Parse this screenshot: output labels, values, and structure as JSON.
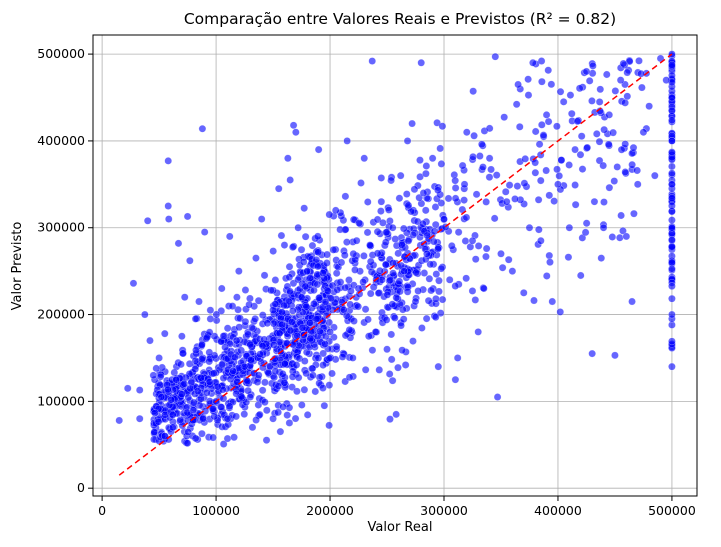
{
  "chart_data": {
    "type": "scatter",
    "title": "Comparação entre Valores Reais e Previstos (R² = 0.82)",
    "xlabel": "Valor Real",
    "ylabel": "Valor Previsto",
    "xlim": [
      -8000,
      522000
    ],
    "ylim": [
      -9000,
      522000
    ],
    "xticks": [
      0,
      100000,
      200000,
      300000,
      400000,
      500000
    ],
    "yticks": [
      0,
      100000,
      200000,
      300000,
      400000,
      500000
    ],
    "xtick_labels": [
      "0",
      "100000",
      "200000",
      "300000",
      "400000",
      "500000"
    ],
    "ytick_labels": [
      "0",
      "100000",
      "200000",
      "300000",
      "400000",
      "500000"
    ],
    "grid": true,
    "point_color": "#0000ff",
    "point_edge_color": "#ffffff",
    "point_opacity": 0.6,
    "reference_line": {
      "x": [
        15000,
        500000
      ],
      "y": [
        15000,
        500000
      ],
      "color": "#ff0000",
      "style": "dashed"
    },
    "series": [
      {
        "points": [
          [
            14999,
            78000
          ],
          [
            22500,
            115000
          ],
          [
            27500,
            236000
          ],
          [
            33000,
            113000
          ],
          [
            33000,
            80000
          ],
          [
            37500,
            200000
          ],
          [
            40000,
            308000
          ],
          [
            42000,
            170000
          ],
          [
            45000,
            130000
          ],
          [
            47500,
            138000
          ],
          [
            50000,
            150000
          ],
          [
            52000,
            105000
          ],
          [
            55000,
            178000
          ],
          [
            55000,
            60000
          ],
          [
            58000,
            325000
          ],
          [
            58000,
            377000
          ],
          [
            58500,
            310000
          ],
          [
            62000,
            70000
          ],
          [
            65000,
            125000
          ],
          [
            67000,
            282000
          ],
          [
            70000,
            175000
          ],
          [
            72500,
            220000
          ],
          [
            75000,
            313000
          ],
          [
            77000,
            262000
          ],
          [
            80000,
            90000
          ],
          [
            82000,
            195000
          ],
          [
            85000,
            215000
          ],
          [
            87500,
            165000
          ],
          [
            88000,
            414000
          ],
          [
            90000,
            295000
          ],
          [
            92000,
            110000
          ],
          [
            95000,
            205000
          ],
          [
            100000,
            100000
          ],
          [
            105000,
            230000
          ],
          [
            110000,
            80000
          ],
          [
            112000,
            290000
          ],
          [
            115000,
            135000
          ],
          [
            118000,
            170000
          ],
          [
            120000,
            250000
          ],
          [
            125000,
            140000
          ],
          [
            130000,
            105000
          ],
          [
            135000,
            265000
          ],
          [
            140000,
            310000
          ],
          [
            145000,
            190000
          ],
          [
            150000,
            80000
          ],
          [
            155000,
            345000
          ],
          [
            160000,
            280000
          ],
          [
            163000,
            380000
          ],
          [
            165000,
            355000
          ],
          [
            168000,
            418000
          ],
          [
            170000,
            410000
          ],
          [
            172000,
            300000
          ],
          [
            175000,
            220000
          ],
          [
            180000,
            250000
          ],
          [
            185000,
            130000
          ],
          [
            190000,
            390000
          ],
          [
            195000,
            95000
          ],
          [
            200000,
            180000
          ],
          [
            205000,
            320000
          ],
          [
            210000,
            260000
          ],
          [
            215000,
            400000
          ],
          [
            220000,
            150000
          ],
          [
            225000,
            230000
          ],
          [
            230000,
            380000
          ],
          [
            235000,
            280000
          ],
          [
            237000,
            492000
          ],
          [
            240000,
            180000
          ],
          [
            245000,
            330000
          ],
          [
            250000,
            160000
          ],
          [
            255000,
            300000
          ],
          [
            258000,
            85000
          ],
          [
            262000,
            360000
          ],
          [
            265000,
            250000
          ],
          [
            268000,
            400000
          ],
          [
            272000,
            420000
          ],
          [
            275000,
            215000
          ],
          [
            280000,
            490000
          ],
          [
            282000,
            340000
          ],
          [
            285000,
            270000
          ],
          [
            290000,
            380000
          ],
          [
            295000,
            140000
          ],
          [
            300000,
            310000
          ],
          [
            305000,
            240000
          ],
          [
            310000,
            125000
          ],
          [
            312000,
            150000
          ],
          [
            318000,
            350000
          ],
          [
            320000,
            410000
          ],
          [
            325000,
            285000
          ],
          [
            330000,
            180000
          ],
          [
            335000,
            230000
          ],
          [
            340000,
            380000
          ],
          [
            345000,
            497000
          ],
          [
            347000,
            105000
          ],
          [
            350000,
            270000
          ],
          [
            355000,
            330000
          ],
          [
            360000,
            250000
          ],
          [
            365000,
            465000
          ],
          [
            370000,
            225000
          ],
          [
            375000,
            300000
          ],
          [
            378000,
            490000
          ],
          [
            380000,
            375000
          ],
          [
            385000,
            285000
          ],
          [
            390000,
            430000
          ],
          [
            395000,
            215000
          ],
          [
            400000,
            350000
          ],
          [
            402000,
            203000
          ],
          [
            405000,
            445000
          ],
          [
            410000,
            300000
          ],
          [
            415000,
            390000
          ],
          [
            420000,
            245000
          ],
          [
            425000,
            480000
          ],
          [
            430000,
            155000
          ],
          [
            432000,
            330000
          ],
          [
            438000,
            265000
          ],
          [
            440000,
            300000
          ],
          [
            445000,
            430000
          ],
          [
            450000,
            153000
          ],
          [
            452000,
            370000
          ],
          [
            455000,
            470000
          ],
          [
            460000,
            290000
          ],
          [
            465000,
            215000
          ],
          [
            470000,
            350000
          ],
          [
            475000,
            410000
          ],
          [
            480000,
            440000
          ],
          [
            485000,
            360000
          ],
          [
            490000,
            495000
          ],
          [
            495000,
            470000
          ],
          [
            500001,
            140000
          ],
          [
            500001,
            200000
          ],
          [
            500001,
            260000
          ],
          [
            500001,
            300000
          ],
          [
            500001,
            350000
          ],
          [
            500001,
            400000
          ],
          [
            500001,
            450000
          ],
          [
            500001,
            500000
          ]
        ]
      }
    ]
  }
}
